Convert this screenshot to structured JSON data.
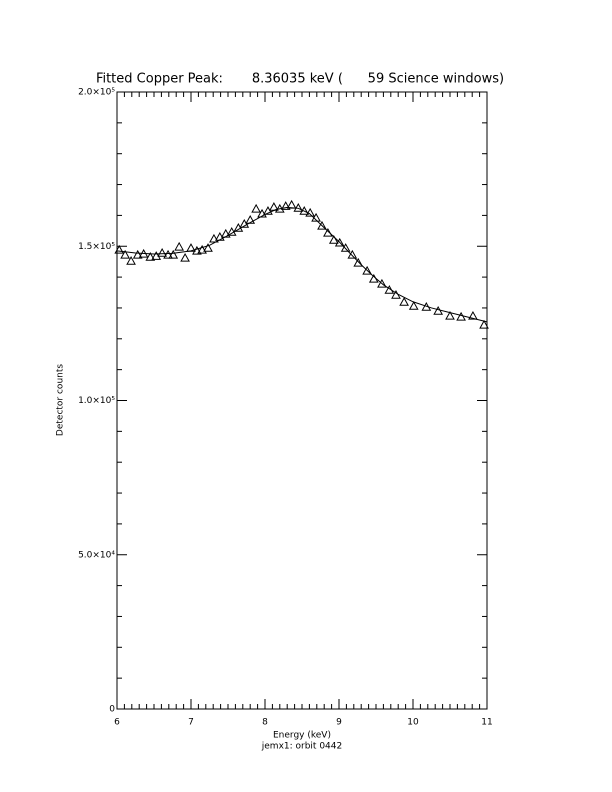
{
  "chart_data": {
    "type": "scatter",
    "title": "Fitted Copper Peak:       8.36035 keV (      59 Science windows)",
    "x_label": "Energy (keV)",
    "y_label": "Detector counts",
    "footer": "jemx1: orbit 0442",
    "xlim": [
      6,
      11
    ],
    "ylim": [
      0,
      200000
    ],
    "xticks": [
      6,
      7,
      8,
      9,
      10,
      11
    ],
    "yticks": [
      0,
      {
        "value": 50000,
        "label": "5.0×10⁴"
      },
      {
        "value": 100000,
        "label": "1.0×10⁵"
      },
      {
        "value": 150000,
        "label": "1.5×10⁵"
      },
      {
        "value": 200000,
        "label": "2.0×10⁵"
      }
    ],
    "minor_ticks": {
      "x": 10,
      "y": 5
    },
    "grid": false,
    "series": [
      {
        "type": "scatter",
        "marker": "triangle",
        "color": "#000000",
        "x": [
          6.03,
          6.11,
          6.19,
          6.28,
          6.36,
          6.45,
          6.53,
          6.61,
          6.69,
          6.76,
          6.84,
          6.92,
          7.0,
          7.08,
          7.15,
          7.23,
          7.31,
          7.39,
          7.47,
          7.55,
          7.64,
          7.72,
          7.8,
          7.88,
          7.96,
          8.04,
          8.12,
          8.2,
          8.28,
          8.36,
          8.45,
          8.53,
          8.61,
          8.69,
          8.77,
          8.85,
          8.93,
          9.01,
          9.09,
          9.18,
          9.26,
          9.38,
          9.47,
          9.58,
          9.68,
          9.77,
          9.88,
          10.01,
          10.18,
          10.34,
          10.5,
          10.65,
          10.81,
          10.96
        ],
        "values": [
          148800,
          147200,
          145200,
          147200,
          147500,
          146500,
          146800,
          147800,
          147200,
          147200,
          149800,
          146200,
          149400,
          148500,
          148800,
          149400,
          152400,
          153000,
          154000,
          154600,
          155900,
          157200,
          158500,
          162100,
          160500,
          161400,
          162700,
          162100,
          163000,
          163400,
          162400,
          161400,
          160800,
          159200,
          156600,
          154300,
          152000,
          151100,
          149400,
          147200,
          144600,
          142000,
          139400,
          137800,
          135800,
          134200,
          131900,
          130600,
          130300,
          129000,
          127400,
          127100,
          127400,
          124500
        ]
      },
      {
        "type": "line",
        "color": "#000000",
        "x": [
          6.0,
          6.25,
          6.5,
          6.75,
          7.0,
          7.25,
          7.5,
          7.75,
          8.0,
          8.15,
          8.3,
          8.45,
          8.6,
          8.8,
          9.0,
          9.15,
          9.3,
          9.45,
          9.6,
          9.8,
          10.0,
          10.25,
          10.5,
          10.75,
          11.0
        ],
        "values": [
          148500,
          147800,
          147500,
          147700,
          148500,
          150300,
          153500,
          157000,
          160300,
          161900,
          162600,
          162300,
          160600,
          156000,
          151500,
          147700,
          144000,
          140600,
          137500,
          134400,
          132000,
          130000,
          128500,
          127000,
          125500
        ]
      }
    ]
  }
}
